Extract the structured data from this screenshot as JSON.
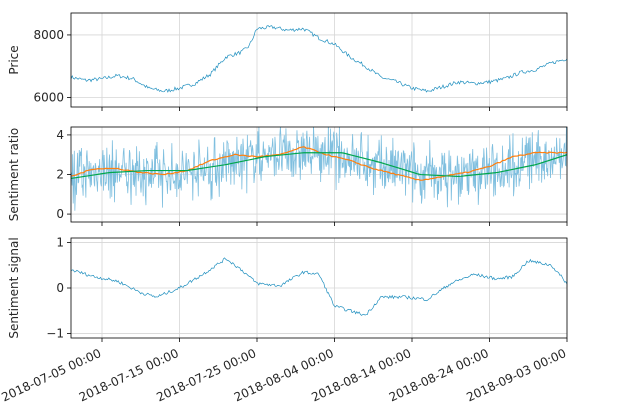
{
  "chart_data": [
    {
      "type": "line",
      "ylabel": "Price",
      "yticks": [
        "6000",
        "8000"
      ],
      "ylim": [
        5700,
        8700
      ],
      "x_range": [
        "2018-07-01",
        "2018-09-03"
      ],
      "grid": true,
      "series": [
        {
          "color": "#1f8fbf",
          "x": [
            "2018-07-01",
            "2018-07-03",
            "2018-07-05",
            "2018-07-07",
            "2018-07-09",
            "2018-07-11",
            "2018-07-13",
            "2018-07-15",
            "2018-07-17",
            "2018-07-19",
            "2018-07-21",
            "2018-07-23",
            "2018-07-24",
            "2018-07-25",
            "2018-07-27",
            "2018-07-29",
            "2018-07-31",
            "2018-08-02",
            "2018-08-04",
            "2018-08-06",
            "2018-08-08",
            "2018-08-10",
            "2018-08-12",
            "2018-08-14",
            "2018-08-16",
            "2018-08-18",
            "2018-08-20",
            "2018-08-22",
            "2018-08-24",
            "2018-08-26",
            "2018-08-28",
            "2018-08-30",
            "2018-09-01",
            "2018-09-03"
          ],
          "values": [
            6650,
            6550,
            6600,
            6700,
            6600,
            6300,
            6200,
            6300,
            6450,
            6750,
            7300,
            7450,
            7650,
            8200,
            8250,
            8150,
            8200,
            7900,
            7700,
            7300,
            7000,
            6650,
            6500,
            6300,
            6200,
            6350,
            6500,
            6450,
            6500,
            6600,
            6800,
            6900,
            7100,
            7250
          ]
        }
      ]
    },
    {
      "type": "line",
      "ylabel": "Sentiment ratio",
      "yticks": [
        "0",
        "2",
        "4"
      ],
      "ylim": [
        -0.4,
        4.4
      ],
      "x_range": [
        "2018-07-01",
        "2018-09-03"
      ],
      "grid": true,
      "series": [
        {
          "color": "#7fbfdf",
          "kind": "noisy-band",
          "x": [
            "2018-07-01",
            "2018-07-05",
            "2018-07-10",
            "2018-07-15",
            "2018-07-20",
            "2018-07-25",
            "2018-07-30",
            "2018-08-04",
            "2018-08-09",
            "2018-08-14",
            "2018-08-19",
            "2018-08-24",
            "2018-08-29",
            "2018-09-03"
          ],
          "values": [
            1.9,
            2.2,
            2.1,
            2.0,
            2.4,
            2.9,
            3.1,
            3.0,
            2.5,
            2.1,
            1.9,
            2.2,
            2.7,
            3.0
          ],
          "spread": 1.3
        },
        {
          "color": "#ff7f0e",
          "x": [
            "2018-07-01",
            "2018-07-04",
            "2018-07-07",
            "2018-07-10",
            "2018-07-13",
            "2018-07-16",
            "2018-07-19",
            "2018-07-22",
            "2018-07-25",
            "2018-07-28",
            "2018-07-31",
            "2018-08-03",
            "2018-08-06",
            "2018-08-09",
            "2018-08-12",
            "2018-08-15",
            "2018-08-18",
            "2018-08-21",
            "2018-08-24",
            "2018-08-27",
            "2018-08-30",
            "2018-09-03"
          ],
          "values": [
            1.9,
            2.3,
            2.3,
            2.1,
            2.0,
            2.2,
            2.7,
            3.0,
            2.9,
            3.0,
            3.4,
            3.0,
            2.7,
            2.3,
            2.0,
            1.7,
            1.9,
            2.1,
            2.4,
            2.9,
            3.1,
            3.1
          ]
        },
        {
          "color": "#00a64c",
          "x": [
            "2018-07-01",
            "2018-07-06",
            "2018-07-11",
            "2018-07-16",
            "2018-07-21",
            "2018-07-26",
            "2018-07-31",
            "2018-08-05",
            "2018-08-10",
            "2018-08-15",
            "2018-08-20",
            "2018-08-25",
            "2018-08-30",
            "2018-09-03"
          ],
          "values": [
            1.8,
            2.1,
            2.2,
            2.2,
            2.5,
            2.9,
            3.1,
            3.1,
            2.6,
            2.0,
            1.9,
            2.1,
            2.5,
            3.0
          ]
        }
      ]
    },
    {
      "type": "line",
      "ylabel": "Sentiment signal",
      "yticks": [
        "−1",
        "0",
        "1"
      ],
      "ylim": [
        -1.1,
        1.1
      ],
      "x_range": [
        "2018-07-01",
        "2018-09-03"
      ],
      "xticks": [
        "2018-07-05 00:00",
        "2018-07-15 00:00",
        "2018-07-25 00:00",
        "2018-08-04 00:00",
        "2018-08-14 00:00",
        "2018-08-24 00:00",
        "2018-09-03 00:00"
      ],
      "grid": true,
      "series": [
        {
          "color": "#1f8fbf",
          "x": [
            "2018-07-01",
            "2018-07-04",
            "2018-07-07",
            "2018-07-10",
            "2018-07-12",
            "2018-07-15",
            "2018-07-18",
            "2018-07-21",
            "2018-07-23",
            "2018-07-25",
            "2018-07-28",
            "2018-07-31",
            "2018-08-02",
            "2018-08-04",
            "2018-08-06",
            "2018-08-08",
            "2018-08-10",
            "2018-08-13",
            "2018-08-16",
            "2018-08-19",
            "2018-08-22",
            "2018-08-25",
            "2018-08-27",
            "2018-08-29",
            "2018-09-01",
            "2018-09-03"
          ],
          "values": [
            0.4,
            0.25,
            0.15,
            -0.1,
            -0.2,
            0.0,
            0.3,
            0.65,
            0.4,
            0.1,
            0.05,
            0.35,
            0.3,
            -0.4,
            -0.5,
            -0.6,
            -0.2,
            -0.2,
            -0.25,
            0.1,
            0.3,
            0.2,
            0.25,
            0.6,
            0.5,
            0.1
          ]
        }
      ]
    }
  ]
}
